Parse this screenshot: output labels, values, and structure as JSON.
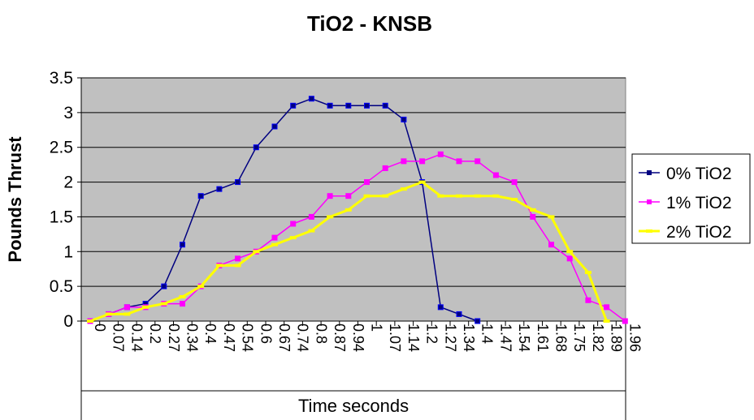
{
  "chart_data": {
    "type": "line",
    "title": "TiO2 - KNSB",
    "xlabel": "Time seconds",
    "ylabel": "Pounds Thrust",
    "ylim": [
      0,
      3.5
    ],
    "yticks": [
      "0",
      "0.5",
      "1",
      "1.5",
      "2",
      "2.5",
      "3",
      "3.5"
    ],
    "grid": true,
    "plot_background": "#c0c0c0",
    "legend_position": "right",
    "categories": [
      "0",
      "0.07",
      "0.14",
      "0.2",
      "0.27",
      "0.34",
      "0.4",
      "0.47",
      "0.54",
      "0.6",
      "0.67",
      "0.74",
      "0.8",
      "0.87",
      "0.94",
      "1",
      "1.07",
      "1.14",
      "1.2",
      "1.27",
      "1.34",
      "1.4",
      "1.47",
      "1.54",
      "1.61",
      "1.68",
      "1.75",
      "1.82",
      "1.89",
      "1.96"
    ],
    "series": [
      {
        "name": "0% TiO2",
        "color": "#000080",
        "marker": "square",
        "values": [
          0,
          0.1,
          0.2,
          0.25,
          0.5,
          1.1,
          1.8,
          1.9,
          2.0,
          2.5,
          2.8,
          3.1,
          3.2,
          3.1,
          3.1,
          3.1,
          3.1,
          2.9,
          2.0,
          0.2,
          0.1,
          0.0,
          null,
          null,
          null,
          null,
          null,
          null,
          null,
          null
        ]
      },
      {
        "name": "1% TiO2",
        "color": "#ff00ff",
        "marker": "square",
        "values": [
          0,
          0.1,
          0.2,
          0.2,
          0.25,
          0.25,
          0.5,
          0.8,
          0.9,
          1.0,
          1.2,
          1.4,
          1.5,
          1.8,
          1.8,
          2.0,
          2.2,
          2.3,
          2.3,
          2.4,
          2.3,
          2.3,
          2.1,
          2.0,
          1.5,
          1.1,
          0.9,
          0.3,
          0.2,
          0.0
        ]
      },
      {
        "name": "2% TiO2",
        "color": "#ffff00",
        "marker": "dash",
        "values": [
          0,
          0.1,
          0.1,
          0.2,
          0.25,
          0.35,
          0.5,
          0.8,
          0.8,
          1.0,
          1.1,
          1.2,
          1.3,
          1.5,
          1.6,
          1.8,
          1.8,
          1.9,
          2.0,
          1.8,
          1.8,
          1.8,
          1.8,
          1.75,
          1.6,
          1.5,
          1.0,
          0.7,
          0.0,
          null
        ]
      }
    ]
  }
}
